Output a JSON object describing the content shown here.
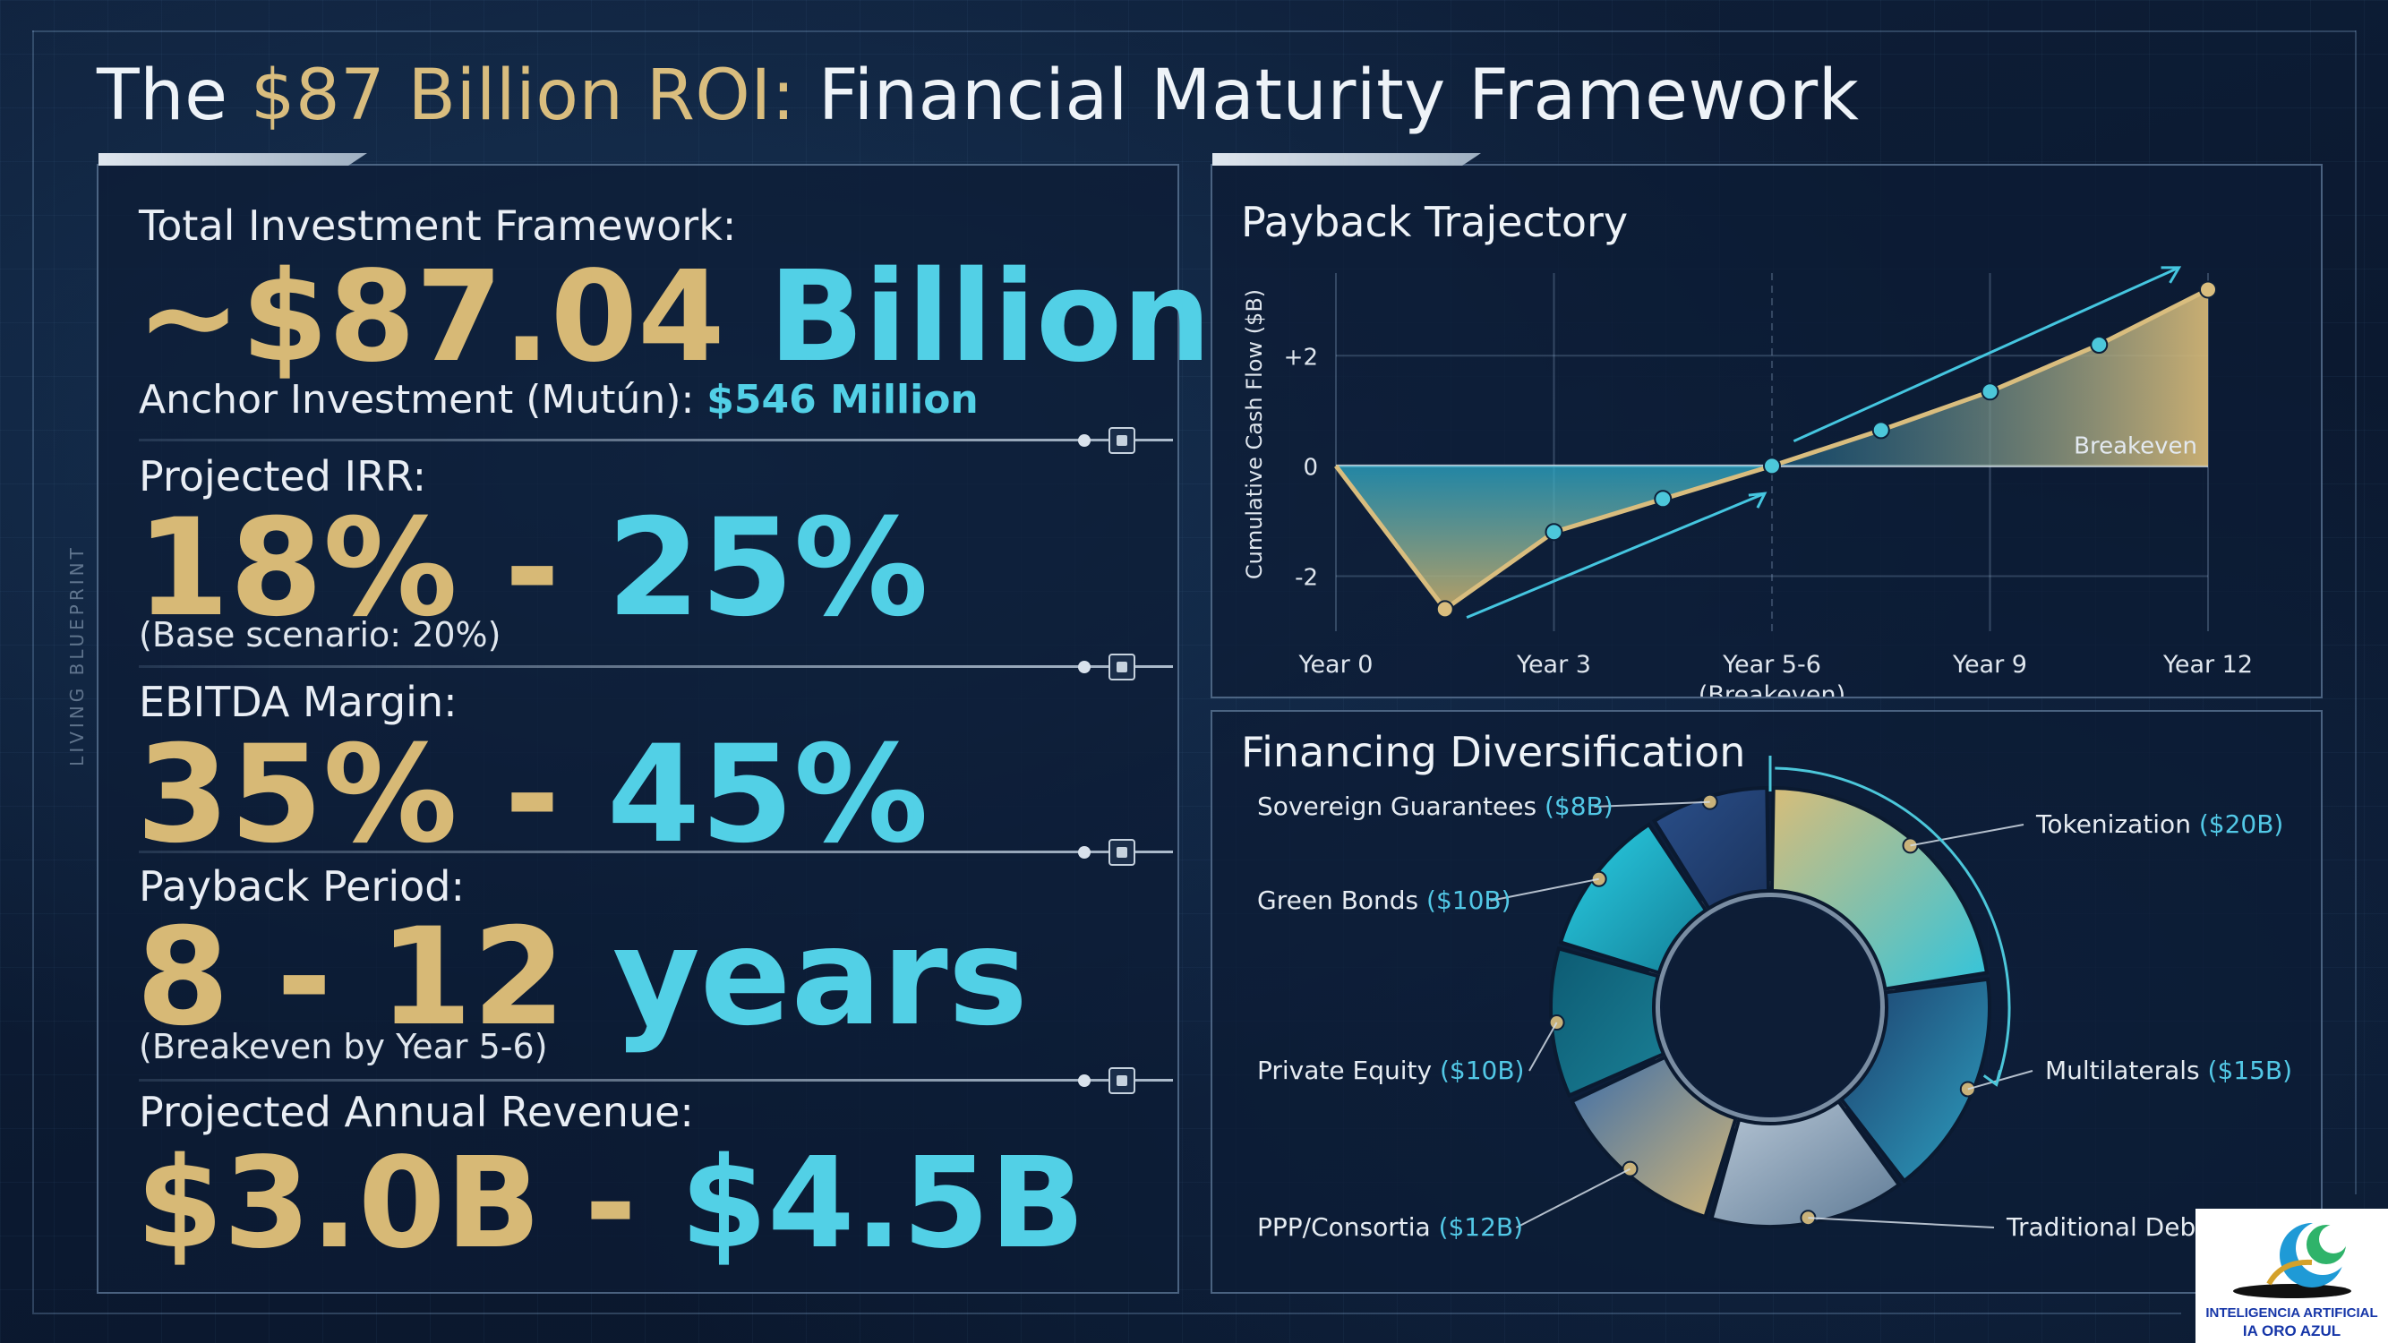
{
  "header": {
    "title_prefix": "The ",
    "title_highlight": "$87 Billion ROI:",
    "title_suffix": " Financial Maturity Framework"
  },
  "side_label": "LIVING BLUEPRINT",
  "metrics": {
    "investment": {
      "label": "Total Investment Framework:",
      "value_gold": "~$87.04",
      "value_cyan": " Billion",
      "note_prefix": "Anchor Investment (Mutún): ",
      "note_highlight": "$546 Million"
    },
    "irr": {
      "label": "Projected IRR:",
      "value_gold": "18% - ",
      "value_cyan": "25%",
      "note": "(Base scenario: 20%)"
    },
    "ebitda": {
      "label": "EBITDA Margin:",
      "value_gold": "35% - ",
      "value_cyan": "45%"
    },
    "payback": {
      "label": "Payback Period:",
      "value_gold": "8 - 12 ",
      "value_cyan": "years",
      "note": "(Breakeven by Year 5-6)"
    },
    "revenue": {
      "label": "Projected Annual Revenue:",
      "value_gold": "$3.0B - ",
      "value_cyan": "$4.5B"
    }
  },
  "colors": {
    "gold": "#d7b976",
    "cyan": "#52d0e6",
    "background": "#0c1a30"
  },
  "chart_data": [
    {
      "type": "line",
      "title": "Payback Trajectory",
      "ylabel": "Cumulative Cash Flow ($B)",
      "xlabel": "",
      "x": [
        0,
        1.5,
        3,
        4.5,
        6,
        7.5,
        9,
        10.5,
        12
      ],
      "y": [
        0,
        -2.6,
        -1.2,
        -0.6,
        0,
        0.65,
        1.35,
        2.2,
        3.2
      ],
      "xlim": [
        0,
        12
      ],
      "ylim": [
        -3,
        3.5
      ],
      "x_ticks": [
        {
          "x": 0,
          "label": "Year 0"
        },
        {
          "x": 3,
          "label": "Year 3"
        },
        {
          "x": 6,
          "label": "Year 5-6",
          "sublabel": "(Breakeven)"
        },
        {
          "x": 9,
          "label": "Year 9"
        },
        {
          "x": 12,
          "label": "Year 12"
        }
      ],
      "y_ticks": [
        {
          "y": 2,
          "label": "+2"
        },
        {
          "y": 0,
          "label": "0"
        },
        {
          "y": -2,
          "label": "-2"
        }
      ],
      "annotation": "Breakeven",
      "grid": true
    },
    {
      "type": "pie",
      "title": "Financing Diversification",
      "unit": "$B",
      "slices": [
        {
          "name": "Tokenization",
          "value": 20,
          "label": "Tokenization",
          "amount": "($20B)",
          "color": "#d8bd79",
          "color2": "#31c4dc"
        },
        {
          "name": "Multilaterals",
          "value": 15,
          "label": "Multilaterals",
          "amount": "($15B)",
          "color": "#1d3f6c",
          "color2": "#2d9fc0"
        },
        {
          "name": "Traditional Debt",
          "value": 13,
          "label": "Traditional Debt",
          "amount": "",
          "color": "#b8c7d6",
          "color2": "#5f7b96"
        },
        {
          "name": "PPP/Consortia",
          "value": 12,
          "label": "PPP/Consortia",
          "amount": "($12B)",
          "color": "#3e6ea8",
          "color2": "#d2b677"
        },
        {
          "name": "Private Equity",
          "value": 10,
          "label": "Private Equity",
          "amount": "($10B)",
          "color": "#0d5b73",
          "color2": "#1a7f95"
        },
        {
          "name": "Green Bonds",
          "value": 10,
          "label": "Green Bonds",
          "amount": "($10B)",
          "color": "#2ad0e6",
          "color2": "#137f97"
        },
        {
          "name": "Sovereign Guarantees",
          "value": 8,
          "label": "Sovereign Guarantees",
          "amount": "($8B)",
          "color": "#2a4f8a",
          "color2": "#1b335d"
        }
      ]
    }
  ],
  "logo": {
    "line1": "INTELIGENCIA ARTIFICIAL",
    "line2": "IA ORO AZUL"
  }
}
